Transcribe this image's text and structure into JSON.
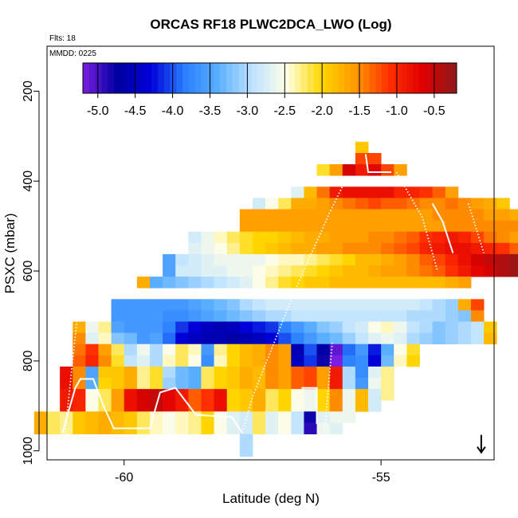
{
  "chart_data": {
    "type": "heatmap",
    "title": "ORCAS RF18 PLWC2DCA_LWO (Log)",
    "flights_note": "Flts: 18",
    "date_note": "MMDD: 0225",
    "xlabel": "Latitude (deg N)",
    "ylabel": "PSXC (mbar)",
    "xlim": [
      -61.5,
      -52.8
    ],
    "ylim": [
      1020,
      100
    ],
    "x_ticks": [
      -60,
      -55
    ],
    "x_tick_labels": [
      "-60",
      "-55"
    ],
    "y_ticks": [
      200,
      400,
      600,
      800,
      1000
    ],
    "y_tick_labels": [
      "200",
      "400",
      "600",
      "800",
      "1000"
    ],
    "cell_width_deg": 0.25,
    "cell_height_mbar": 25,
    "colorbar": {
      "min": -5.2,
      "max": -0.2,
      "ticks": [
        -5.0,
        -4.5,
        -4.0,
        -3.5,
        -3.0,
        -2.5,
        -2.0,
        -1.5,
        -1.0,
        -0.5
      ],
      "tick_labels": [
        "-5.0",
        "-4.5",
        "-4.0",
        "-3.5",
        "-3.0",
        "-2.5",
        "-2.0",
        "-1.5",
        "-1.0",
        "-0.5"
      ],
      "colors": [
        "#7a1fe0",
        "#0000a0",
        "#0000d8",
        "#2a7fff",
        "#5cb0ff",
        "#bfe3ff",
        "#ffffe6",
        "#ffd700",
        "#ff9a00",
        "#ff3000",
        "#e00000",
        "#8b1a1a"
      ]
    },
    "rows": [
      {
        "p": 325,
        "lat0": -55.5,
        "values": [
          -1.9
        ]
      },
      {
        "p": 350,
        "lat0": -55.5,
        "values": [
          -1.2,
          -1.2
        ]
      },
      {
        "p": 375,
        "lat0": -56.25,
        "values": [
          -2.1,
          -1.6,
          -0.6,
          -0.9,
          -0.7,
          -1.2,
          -1.6
        ]
      },
      {
        "p": 425,
        "lat0": -56.75,
        "values": [
          -2.7,
          -1.8,
          -1.4,
          -0.9,
          -0.8,
          -0.8,
          -0.8,
          -0.8,
          -1.0,
          -1.0,
          -1.1,
          -1.3,
          -1.6
        ]
      },
      {
        "p": 450,
        "lat0": -57.5,
        "values": [
          -2.8,
          -2.5,
          -2.2,
          -1.7,
          -1.7,
          -1.6,
          -1.5,
          -1.4,
          -1.3,
          -1.2,
          -1.3,
          -1.3,
          -1.4,
          -1.5,
          -1.5,
          -1.4,
          -1.5,
          -1.6,
          -1.7,
          -1.9
        ]
      },
      {
        "p": 475,
        "lat0": -57.75,
        "values": [
          -1.6,
          -1.6,
          -1.6,
          -1.6,
          -1.6,
          -1.6,
          -1.6,
          -1.6,
          -1.6,
          -1.6,
          -1.6,
          -1.6,
          -1.6,
          -1.6,
          -1.6,
          -1.5,
          -1.5,
          -1.5,
          -1.5,
          -1.6,
          -1.6,
          -1.7
        ]
      },
      {
        "p": 500,
        "lat0": -57.75,
        "values": [
          -1.6,
          -1.6,
          -1.6,
          -1.6,
          -1.6,
          -1.6,
          -1.6,
          -1.6,
          -1.6,
          -1.6,
          -1.6,
          -1.6,
          -1.6,
          -1.6,
          -1.6,
          -1.6,
          -1.5,
          -1.5,
          -1.5,
          -1.5,
          -1.5,
          -1.5
        ]
      },
      {
        "p": 525,
        "lat0": -58.75,
        "values": [
          -2.8,
          -2.6,
          -2.4,
          -2.2,
          -2.1,
          -2.0,
          -2.0,
          -1.9,
          -1.8,
          -1.7,
          -1.7,
          -1.6,
          -1.6,
          -1.6,
          -1.5,
          -1.5,
          -1.4,
          -1.3,
          -1.1,
          -1.0,
          -0.9,
          -1.0,
          -1.2,
          -1.4,
          -1.5,
          -1.6
        ]
      },
      {
        "p": 550,
        "lat0": -58.75,
        "values": [
          -2.7,
          -2.6,
          -2.5,
          -2.3,
          -2.1,
          -2.0,
          -1.9,
          -1.8,
          -1.7,
          -1.7,
          -1.6,
          -1.6,
          -1.5,
          -1.5,
          -1.5,
          -1.4,
          -1.3,
          -1.2,
          -1.0,
          -0.9,
          -0.8,
          -0.8,
          -0.9,
          -1.0,
          -1.1,
          -1.3
        ]
      },
      {
        "p": 575,
        "lat0": -59.25,
        "values": [
          -3.5,
          -2.9,
          -2.8,
          -2.7,
          -2.6,
          -2.6,
          -2.6,
          -2.6,
          -2.5,
          -2.4,
          -2.4,
          -2.3,
          -2.2,
          -2.1,
          -2.0,
          -1.8,
          -1.8,
          -1.7,
          -1.6,
          -1.5,
          -1.3,
          -1.2,
          -1.0,
          -0.8,
          -0.6,
          -0.5,
          -0.4,
          -0.3
        ]
      },
      {
        "p": 600,
        "lat0": -59.25,
        "values": [
          -3.5,
          -2.8,
          -2.8,
          -2.7,
          -2.7,
          -2.6,
          -2.6,
          -2.5,
          -2.4,
          -2.3,
          -2.2,
          -2.1,
          -2.0,
          -1.9,
          -1.8,
          -1.8,
          -1.7,
          -1.6,
          -1.6,
          -1.5,
          -1.4,
          -1.3,
          -1.1,
          -0.9,
          -0.7,
          -0.6,
          -0.4,
          -0.3
        ]
      },
      {
        "p": 625,
        "lat0": -59.75,
        "values": [
          -1.7,
          -3.4,
          -3.3,
          -3.2,
          -3.1,
          -3.0,
          -2.9,
          -2.8,
          -2.7,
          -2.5,
          -2.3,
          -2.1,
          -2.0,
          -1.9,
          -1.9,
          -1.8,
          -1.8,
          -1.8,
          -1.8,
          -1.8,
          -1.8,
          -1.8,
          -1.8,
          -1.8,
          -1.7,
          -1.6
        ]
      },
      {
        "p": 675,
        "lat0": -60.25,
        "values": [
          -3.6,
          -3.6,
          -3.6,
          -3.6,
          -3.6,
          -3.6,
          -3.5,
          -3.4,
          -3.3,
          -3.2,
          -3.0,
          -2.9,
          -2.8,
          -2.8,
          -2.8,
          -2.8,
          -2.8,
          -2.8,
          -2.8,
          -2.8,
          -2.8,
          -2.8,
          -2.8,
          -2.8,
          -2.9,
          -3.0,
          -3.1,
          -1.7,
          -1.2
        ]
      },
      {
        "p": 700,
        "lat0": -60.25,
        "values": [
          -3.6,
          -3.6,
          -3.6,
          -3.6,
          -3.7,
          -3.7,
          -3.6,
          -3.5,
          -3.4,
          -3.3,
          -3.2,
          -3.1,
          -3.0,
          -3.0,
          -2.9,
          -2.9,
          -2.9,
          -2.9,
          -2.9,
          -2.9,
          -2.9,
          -2.9,
          -2.9,
          -3.0,
          -3.0,
          -3.0,
          -3.1,
          -3.2,
          -1.5
        ]
      },
      {
        "p": 725,
        "lat0": -61.0,
        "values": [
          -1.7,
          -2.6,
          -2.3,
          -3.5,
          -3.6,
          -3.6,
          -3.6,
          -3.8,
          -4.1,
          -4.3,
          -4.5,
          -4.6,
          -4.5,
          -4.3,
          -4.2,
          -4.1,
          -3.8,
          -3.6,
          -3.4,
          -3.2,
          -3.1,
          -2.9,
          -2.8,
          -2.5,
          -2.4,
          -2.6,
          -2.9,
          -3.0,
          -3.2,
          -3.1,
          -3.0,
          -2.9,
          -1.9
        ]
      },
      {
        "p": 750,
        "lat0": -61.0,
        "values": [
          -1.5,
          -2.7,
          -2.4,
          -3.2,
          -3.3,
          -3.6,
          -3.5,
          -3.9,
          -4.3,
          -4.5,
          -4.6,
          -4.6,
          -4.7,
          -4.6,
          -4.5,
          -4.3,
          -4.0,
          -3.8,
          -3.6,
          -3.4,
          -3.3,
          -3.1,
          -2.9,
          -2.7,
          -2.6,
          -2.7,
          -3.0,
          -3.1,
          -3.2,
          -3.1,
          -3.0,
          -2.9,
          -1.8
        ]
      },
      {
        "p": 775,
        "lat0": -61.0,
        "values": [
          -1.4,
          -1.1,
          -1.6,
          -2.2,
          -3.0,
          -2.6,
          -3.0,
          -2.5,
          -2.2,
          -2.4,
          -3.6,
          -2.3,
          -2.0,
          -1.8,
          -1.7,
          -1.5,
          -1.6,
          -4.6,
          -4.0,
          -4.7,
          -5.1,
          -3.9,
          -3.6,
          -4.2,
          -3.4,
          -2.5,
          -2.1
        ]
      },
      {
        "p": 800,
        "lat0": -61.0,
        "values": [
          -1.3,
          -1.0,
          -1.5,
          -2.1,
          -2.9,
          -2.7,
          -3.0,
          -2.4,
          -2.2,
          -2.5,
          -3.7,
          -2.4,
          -2.0,
          -1.8,
          -1.7,
          -1.5,
          -1.6,
          -4.5,
          -4.1,
          -4.8,
          -5.2,
          -3.8,
          -3.7,
          -4.3,
          -3.3,
          -2.4,
          -2.0
        ]
      },
      {
        "p": 825,
        "lat0": -61.25,
        "values": [
          -0.8,
          -1.5,
          -3.5,
          -1.9,
          -1.9,
          -1.7,
          -2.3,
          -2.1,
          -3.0,
          -3.3,
          -3.4,
          -2.2,
          -2.0,
          -1.9,
          -1.7,
          -1.8,
          -1.5,
          -1.6,
          -1.3,
          -1.2,
          -1.6,
          -0.9,
          -3.0,
          -3.7,
          -2.7,
          -2.3
        ]
      },
      {
        "p": 850,
        "lat0": -61.25,
        "values": [
          -0.8,
          -1.5,
          -3.4,
          -2.0,
          -1.9,
          -1.7,
          -2.3,
          -2.1,
          -3.1,
          -3.3,
          -3.4,
          -2.2,
          -2.0,
          -1.9,
          -1.7,
          -1.8,
          -1.5,
          -1.6,
          -1.3,
          -1.2,
          -1.6,
          -0.9,
          -3.0,
          -3.6,
          -2.6,
          -2.3
        ]
      },
      {
        "p": 875,
        "lat0": -61.25,
        "values": [
          -0.9,
          -1.0,
          -2.5,
          -2.2,
          -1.6,
          -0.8,
          -0.6,
          -0.5,
          -0.7,
          -0.9,
          -1.3,
          -1.1,
          -0.8,
          -2.0,
          -1.9,
          -1.7,
          -2.2,
          -2.0,
          -2.5,
          -2.6,
          -2.0,
          -1.5,
          -2.6,
          -1.8,
          -2.8,
          -2.3
        ]
      },
      {
        "p": 900,
        "lat0": -61.25,
        "values": [
          -0.9,
          -1.0,
          -2.5,
          -2.2,
          -1.6,
          -0.8,
          -0.6,
          -0.5,
          -0.7,
          -0.9,
          -1.3,
          -1.1,
          -0.8,
          -2.0,
          -1.9,
          -1.7,
          -2.2,
          -2.0,
          -2.5,
          -2.6,
          -2.0,
          -1.5,
          -2.6,
          -1.8,
          -2.8
        ]
      },
      {
        "p": 925,
        "lat0": -61.75,
        "values": [
          -1.7,
          -2.2,
          -2.3,
          -1.9,
          -1.8,
          -1.7,
          -1.8,
          -1.9,
          -2.2,
          -2.4,
          -2.5,
          -2.4,
          -2.3,
          -2.0,
          -2.5,
          -2.7,
          -2.8,
          -2.2,
          -2.7,
          -2.5,
          -2.9,
          -4.8,
          -2.7,
          -2.6,
          -2.6
        ]
      },
      {
        "p": 950,
        "lat0": -61.75,
        "values": [
          -1.7,
          -2.2,
          -2.3,
          -1.9,
          -1.8,
          -1.7,
          -1.8,
          -1.9,
          -2.2,
          -2.4,
          -2.5,
          -2.4,
          -2.3,
          -2.0,
          -2.5,
          -2.7,
          -2.8,
          -2.2,
          -2.7,
          -2.5,
          -2.9,
          -4.9,
          -2.6,
          -2.7
        ]
      },
      {
        "p": 975,
        "lat0": -57.75,
        "values": [
          -3.0
        ]
      },
      {
        "p": 1000,
        "lat0": -57.75,
        "values": [
          -3.0
        ]
      }
    ],
    "flight_tracks": [
      {
        "style": "solid",
        "points": [
          [
            -61.2,
            960
          ],
          [
            -60.95,
            860
          ],
          [
            -60.85,
            840
          ],
          [
            -60.6,
            840
          ],
          [
            -60.4,
            900
          ],
          [
            -60.2,
            950
          ],
          [
            -59.5,
            950
          ],
          [
            -59.3,
            870
          ],
          [
            -59.0,
            860
          ],
          [
            -58.6,
            920
          ],
          [
            -57.9,
            925
          ],
          [
            -57.7,
            960
          ]
        ]
      },
      {
        "style": "solid",
        "points": [
          [
            -56.55,
            860
          ],
          [
            -56.25,
            860
          ],
          [
            -56.25,
            940
          ]
        ]
      },
      {
        "style": "solid",
        "points": [
          [
            -55.3,
            340
          ],
          [
            -55.25,
            380
          ],
          [
            -54.8,
            380
          ]
        ]
      },
      {
        "style": "solid",
        "points": [
          [
            -54.0,
            450
          ],
          [
            -53.8,
            490
          ],
          [
            -53.6,
            560
          ]
        ]
      },
      {
        "style": "dotted",
        "points": [
          [
            -61.15,
            960
          ],
          [
            -60.9,
            690
          ]
        ]
      },
      {
        "style": "dotted",
        "points": [
          [
            -57.7,
            960
          ],
          [
            -57.5,
            880
          ],
          [
            -56.7,
            650
          ],
          [
            -56.0,
            470
          ],
          [
            -55.7,
            400
          ]
        ]
      },
      {
        "style": "dotted",
        "points": [
          [
            -56.1,
            960
          ],
          [
            -55.95,
            760
          ]
        ]
      },
      {
        "style": "dotted",
        "points": [
          [
            -54.7,
            380
          ],
          [
            -54.2,
            480
          ],
          [
            -53.9,
            600
          ]
        ]
      },
      {
        "style": "dotted",
        "points": [
          [
            -53.3,
            450
          ],
          [
            -53.0,
            560
          ]
        ]
      }
    ],
    "arrow_marker": {
      "lat": -53.05,
      "p": 1000
    }
  }
}
